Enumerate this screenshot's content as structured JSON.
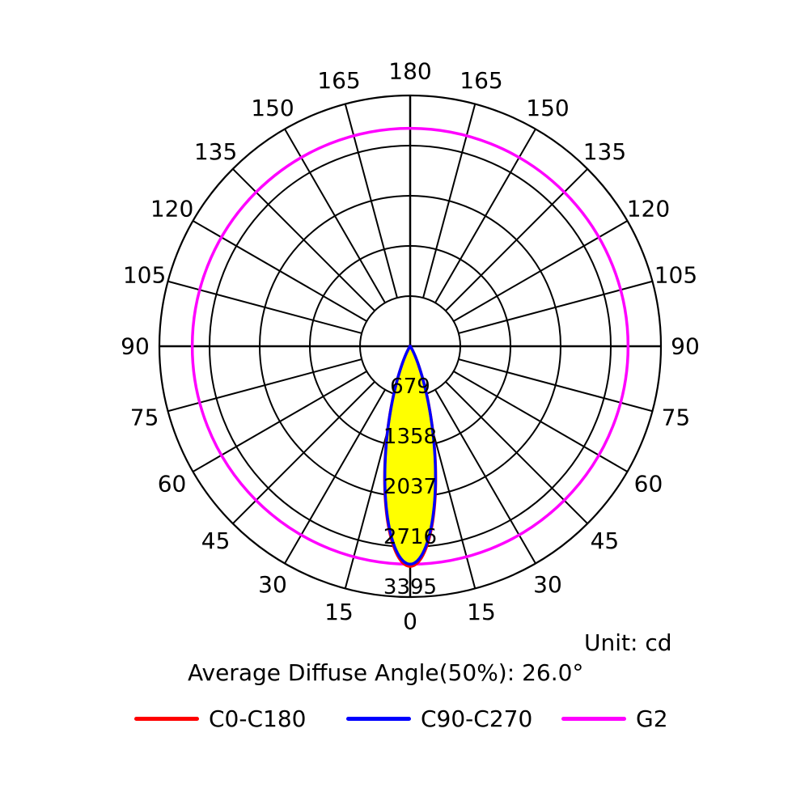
{
  "chart_data": {
    "type": "polar",
    "angle_labels_left": [
      "180",
      "165",
      "150",
      "135",
      "120",
      "105",
      "90",
      "75",
      "60",
      "45",
      "30",
      "15",
      "0"
    ],
    "angle_labels_right": [
      "165",
      "150",
      "135",
      "120",
      "105",
      "90",
      "75",
      "60",
      "45",
      "30",
      "15"
    ],
    "radial_ticks": [
      "679",
      "1358",
      "2037",
      "2716",
      "3395"
    ],
    "rmax": 3395,
    "unit_label": "Unit: cd",
    "diffuse_angle_label": "Average Diffuse Angle(50%): 26.0°",
    "series": [
      {
        "name": "C0-C180",
        "color": "#ff0000",
        "beam_fwhm_deg": 26.0,
        "peak_cd": 2980
      },
      {
        "name": "C90-C270",
        "color": "#0000ff",
        "beam_fwhm_deg": 26.0,
        "peak_cd": 2950
      },
      {
        "name": "G2",
        "color": "#ff00ff",
        "shape": "circle",
        "value_cd": 2950
      }
    ],
    "fill_color": "#ffff00"
  },
  "legend": [
    {
      "label": "C0-C180",
      "color": "#ff0000"
    },
    {
      "label": "C90-C270",
      "color": "#0000ff"
    },
    {
      "label": "G2",
      "color": "#ff00ff"
    }
  ]
}
